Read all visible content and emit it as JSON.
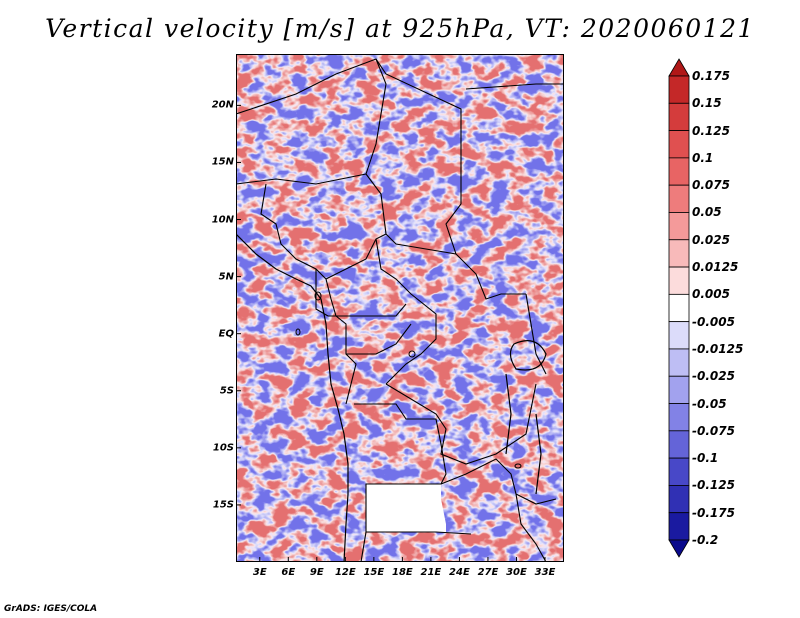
{
  "title": "Vertical velocity [m/s] at 925hPa, VT: 2020060121",
  "credit": "GrADS: IGES/COLA",
  "map": {
    "lat_labels": [
      "20N",
      "15N",
      "10N",
      "5N",
      "EQ",
      "5S",
      "10S",
      "15S"
    ],
    "lat_values": [
      20,
      15,
      10,
      5,
      0,
      -5,
      -10,
      -15
    ],
    "lon_labels": [
      "3E",
      "6E",
      "9E",
      "12E",
      "15E",
      "18E",
      "21E",
      "24E",
      "27E",
      "30E",
      "33E"
    ],
    "lon_values": [
      3,
      6,
      9,
      12,
      15,
      18,
      21,
      24,
      27,
      30,
      33
    ],
    "lat_range": [
      -20,
      24.5
    ],
    "lon_range": [
      0.5,
      35
    ],
    "border_color": "#000000"
  },
  "colorbar": {
    "labels": [
      "0.175",
      "0.15",
      "0.125",
      "0.1",
      "0.075",
      "0.05",
      "0.025",
      "0.0125",
      "0.005",
      "-0.005",
      "-0.0125",
      "-0.025",
      "-0.05",
      "-0.075",
      "-0.1",
      "-0.125",
      "-0.175",
      "-0.2"
    ],
    "colors": [
      "#b01818",
      "#c42828",
      "#d43c3c",
      "#e05050",
      "#e86464",
      "#ee7c7c",
      "#f49a9a",
      "#f8baba",
      "#fcdcdc",
      "#ffffff",
      "#dcdcfa",
      "#bebef4",
      "#a2a2ee",
      "#8282e6",
      "#6464d8",
      "#4848c8",
      "#3030b4",
      "#1a1aa0",
      "#0a0a8c"
    ]
  }
}
